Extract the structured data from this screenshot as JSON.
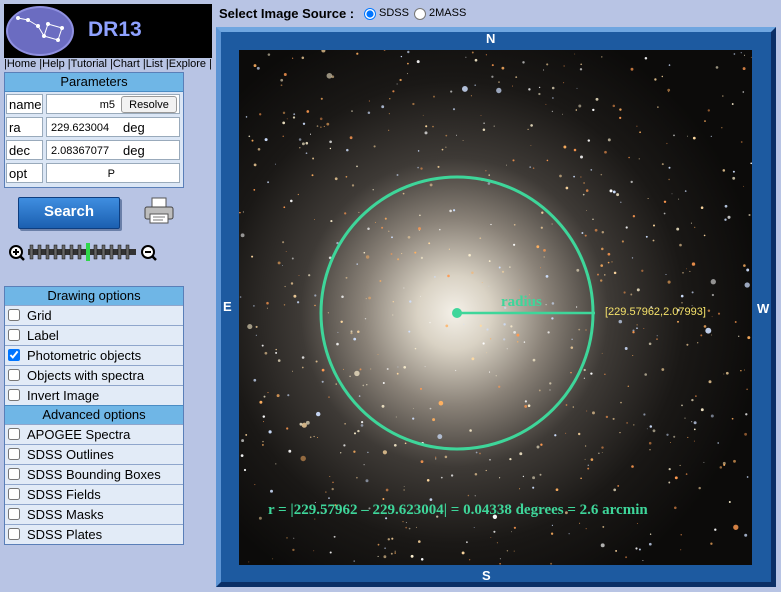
{
  "logo": {
    "text": "DR13"
  },
  "nav": [
    "Home",
    "Help",
    "Tutorial",
    "Chart",
    "List",
    "Explore"
  ],
  "parameters": {
    "title": "Parameters",
    "name": {
      "label": "name",
      "value": "m5",
      "button": "Resolve"
    },
    "ra": {
      "label": "ra",
      "value": "229.623004",
      "unit": "deg"
    },
    "dec": {
      "label": "dec",
      "value": "2.08367077",
      "unit": "deg"
    },
    "opt": {
      "label": "opt",
      "value": "P"
    }
  },
  "search": {
    "label": "Search"
  },
  "drawing_options": {
    "title": "Drawing options",
    "items": [
      {
        "label": "Grid",
        "checked": false
      },
      {
        "label": "Label",
        "checked": false
      },
      {
        "label": "Photometric objects",
        "checked": true
      },
      {
        "label": "Objects with spectra",
        "checked": false
      },
      {
        "label": "Invert Image",
        "checked": false
      }
    ]
  },
  "advanced_options": {
    "title": "Advanced options",
    "items": [
      {
        "label": "APOGEE Spectra",
        "checked": false
      },
      {
        "label": "SDSS Outlines",
        "checked": false
      },
      {
        "label": "SDSS Bounding Boxes",
        "checked": false
      },
      {
        "label": "SDSS Fields",
        "checked": false
      },
      {
        "label": "SDSS Masks",
        "checked": false
      },
      {
        "label": "SDSS Plates",
        "checked": false
      }
    ]
  },
  "image_source": {
    "label": "Select Image Source :",
    "options": [
      {
        "label": "SDSS",
        "selected": true
      },
      {
        "label": "2MASS",
        "selected": false
      }
    ]
  },
  "compass": {
    "n": "N",
    "s": "S",
    "e": "E",
    "w": "W"
  },
  "annotation": {
    "radius_label": "radius",
    "coord_label": "[229.57962,2.07993]",
    "formula": "r = |229.57962 – 229.623004| = 0.04338 degrees = 2.6 arcmin"
  },
  "colors": {
    "frame": "#1d5aa0",
    "panel_header": "#6fb6e6",
    "annotation": "#3ed69a",
    "coord": "#f5e26a"
  }
}
